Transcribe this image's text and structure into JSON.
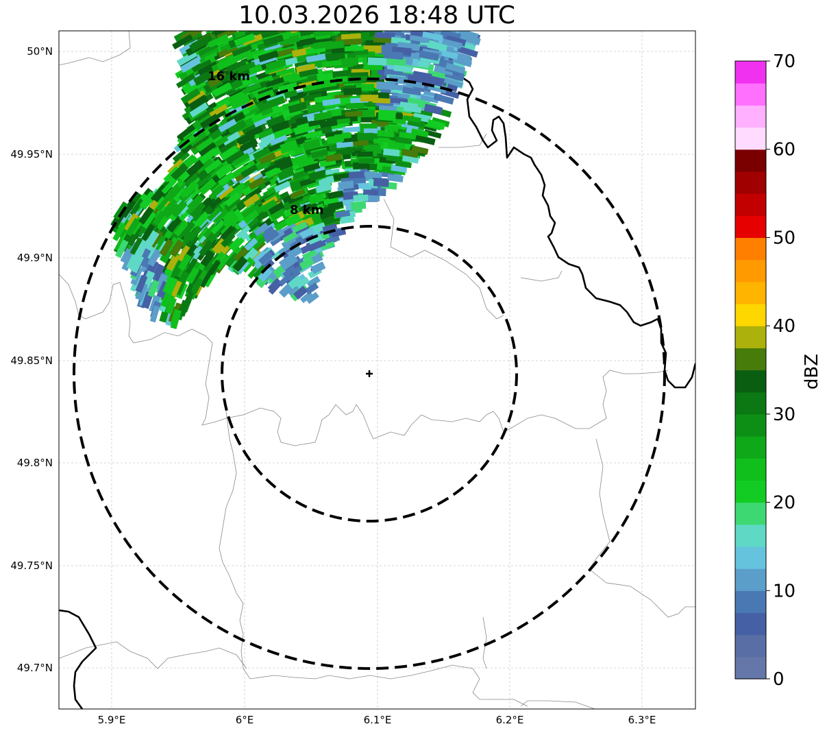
{
  "title": "10.03.2026 18:48 UTC",
  "map": {
    "lon_ticks": [
      "5.9°E",
      "6°E",
      "6.1°E",
      "6.2°E",
      "6.3°E"
    ],
    "lat_ticks": [
      "50°N",
      "49.95°N",
      "49.9°N",
      "49.85°N",
      "49.8°N",
      "49.75°N",
      "49.7°N"
    ],
    "range_rings": [
      {
        "label": "8 km",
        "radius_km": 8
      },
      {
        "label": "16 km",
        "radius_km": 16
      }
    ],
    "radar_site_marker": "plus-icon"
  },
  "colorbar": {
    "label": "dBZ",
    "ticks": [
      "0",
      "10",
      "20",
      "30",
      "40",
      "50",
      "60",
      "70"
    ],
    "colors": [
      "#6577a8",
      "#5a6ea6",
      "#4660a5",
      "#4a78b3",
      "#5b9ec9",
      "#66c3de",
      "#5fd9c6",
      "#3ed872",
      "#12cc23",
      "#10bf1c",
      "#0fa818",
      "#0d8f16",
      "#0b7813",
      "#095e11",
      "#477b0a",
      "#adb10b",
      "#ffd700",
      "#ffb400",
      "#ff9a00",
      "#ff7f00",
      "#e60000",
      "#c30000",
      "#a10000",
      "#7a0000",
      "#ffdcff",
      "#ffb0ff",
      "#ff70ff",
      "#f032f0"
    ]
  }
}
